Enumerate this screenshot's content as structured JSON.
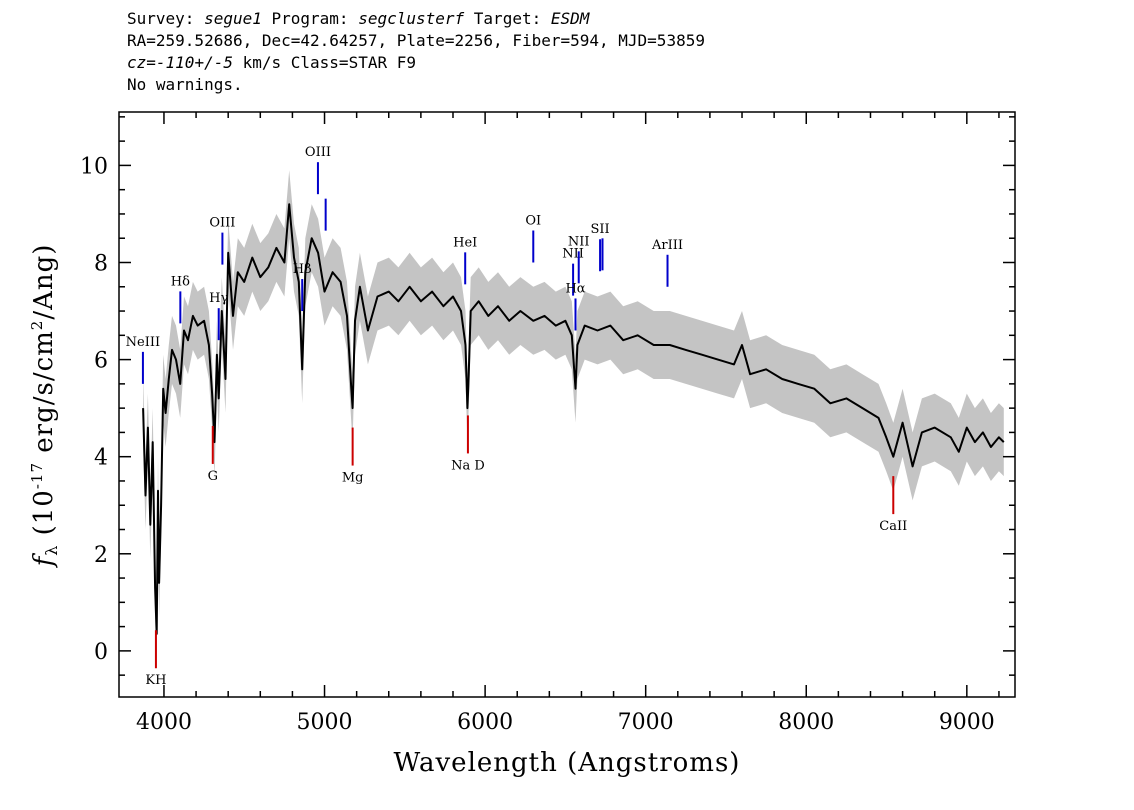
{
  "header": {
    "line1": {
      "survey_label": "Survey: ",
      "survey": "segue1",
      "program_label": " Program: ",
      "program": "segclusterf",
      "target_label": " Target: ",
      "target": "ESDM"
    },
    "line2": "RA=259.52686, Dec=42.64257, Plate=2256, Fiber=594, MJD=53859",
    "line3": {
      "cz_prefix": "cz=",
      "cz_value": "-110+/-5",
      "cz_suffix": " km/s Class=STAR F9"
    },
    "line4": "No warnings."
  },
  "chart_data": {
    "type": "line",
    "xlabel": "Wavelength (Angstroms)",
    "ylabel": "f_λ (10^-17 erg/s/cm^2/Ang)",
    "xlim": [
      3720,
      9300
    ],
    "ylim": [
      -0.95,
      11.1
    ],
    "x_ticks": [
      4000,
      5000,
      6000,
      7000,
      8000,
      9000
    ],
    "y_ticks": [
      0,
      2,
      4,
      6,
      8,
      10
    ],
    "colors": {
      "spectrum": "#000000",
      "error_band": "#c4c4c4",
      "emission": "#0000cc",
      "absorption": "#cc0000"
    },
    "series": [
      {
        "name": "spectrum",
        "points": [
          [
            3870,
            5.0
          ],
          [
            3885,
            3.2
          ],
          [
            3900,
            4.6
          ],
          [
            3915,
            2.6
          ],
          [
            3930,
            4.3
          ],
          [
            3945,
            1.3
          ],
          [
            3955,
            0.35
          ],
          [
            3963,
            3.3
          ],
          [
            3970,
            1.4
          ],
          [
            3982,
            3.0
          ],
          [
            3995,
            5.4
          ],
          [
            4010,
            4.9
          ],
          [
            4030,
            5.6
          ],
          [
            4050,
            6.2
          ],
          [
            4075,
            6.0
          ],
          [
            4101,
            5.5
          ],
          [
            4125,
            6.6
          ],
          [
            4150,
            6.4
          ],
          [
            4180,
            6.9
          ],
          [
            4210,
            6.7
          ],
          [
            4250,
            6.8
          ],
          [
            4280,
            6.3
          ],
          [
            4300,
            5.3
          ],
          [
            4315,
            4.3
          ],
          [
            4330,
            6.1
          ],
          [
            4341,
            5.2
          ],
          [
            4360,
            7.0
          ],
          [
            4383,
            5.6
          ],
          [
            4400,
            8.2
          ],
          [
            4430,
            6.9
          ],
          [
            4460,
            7.8
          ],
          [
            4500,
            7.6
          ],
          [
            4550,
            8.1
          ],
          [
            4600,
            7.7
          ],
          [
            4650,
            7.9
          ],
          [
            4700,
            8.3
          ],
          [
            4750,
            8.0
          ],
          [
            4780,
            9.2
          ],
          [
            4810,
            8.1
          ],
          [
            4840,
            7.6
          ],
          [
            4861,
            5.8
          ],
          [
            4880,
            7.8
          ],
          [
            4920,
            8.5
          ],
          [
            4960,
            8.2
          ],
          [
            5000,
            7.4
          ],
          [
            5050,
            7.8
          ],
          [
            5100,
            7.6
          ],
          [
            5140,
            6.9
          ],
          [
            5167,
            5.4
          ],
          [
            5175,
            5.0
          ],
          [
            5190,
            6.8
          ],
          [
            5220,
            7.5
          ],
          [
            5270,
            6.6
          ],
          [
            5330,
            7.3
          ],
          [
            5400,
            7.4
          ],
          [
            5460,
            7.2
          ],
          [
            5530,
            7.5
          ],
          [
            5600,
            7.2
          ],
          [
            5670,
            7.4
          ],
          [
            5740,
            7.1
          ],
          [
            5800,
            7.3
          ],
          [
            5850,
            7.0
          ],
          [
            5878,
            6.3
          ],
          [
            5890,
            5.0
          ],
          [
            5896,
            5.5
          ],
          [
            5910,
            7.0
          ],
          [
            5960,
            7.2
          ],
          [
            6020,
            6.9
          ],
          [
            6080,
            7.1
          ],
          [
            6150,
            6.8
          ],
          [
            6220,
            7.0
          ],
          [
            6300,
            6.8
          ],
          [
            6370,
            6.9
          ],
          [
            6440,
            6.7
          ],
          [
            6500,
            6.8
          ],
          [
            6540,
            6.5
          ],
          [
            6563,
            5.4
          ],
          [
            6575,
            6.3
          ],
          [
            6620,
            6.7
          ],
          [
            6700,
            6.6
          ],
          [
            6780,
            6.7
          ],
          [
            6860,
            6.4
          ],
          [
            6950,
            6.5
          ],
          [
            7050,
            6.3
          ],
          [
            7150,
            6.3
          ],
          [
            7250,
            6.2
          ],
          [
            7350,
            6.1
          ],
          [
            7450,
            6.0
          ],
          [
            7550,
            5.9
          ],
          [
            7600,
            6.3
          ],
          [
            7650,
            5.7
          ],
          [
            7750,
            5.8
          ],
          [
            7850,
            5.6
          ],
          [
            7950,
            5.5
          ],
          [
            8050,
            5.4
          ],
          [
            8150,
            5.1
          ],
          [
            8250,
            5.2
          ],
          [
            8350,
            5.0
          ],
          [
            8450,
            4.8
          ],
          [
            8498,
            4.4
          ],
          [
            8542,
            4.0
          ],
          [
            8600,
            4.7
          ],
          [
            8662,
            3.8
          ],
          [
            8720,
            4.5
          ],
          [
            8800,
            4.6
          ],
          [
            8900,
            4.4
          ],
          [
            8950,
            4.1
          ],
          [
            9000,
            4.6
          ],
          [
            9050,
            4.3
          ],
          [
            9100,
            4.5
          ],
          [
            9150,
            4.2
          ],
          [
            9200,
            4.4
          ],
          [
            9230,
            4.3
          ]
        ]
      }
    ],
    "emission_lines": [
      {
        "label": "NeIII",
        "wavelength": 3869
      },
      {
        "label": "Hδ",
        "wavelength": 4102
      },
      {
        "label": "Hγ",
        "wavelength": 4341
      },
      {
        "label": "OIII",
        "wavelength": 4364
      },
      {
        "label": "Hβ",
        "wavelength": 4861
      },
      {
        "label": "OIII",
        "wavelength": 4959
      },
      {
        "label": "",
        "wavelength": 5007
      },
      {
        "label": "HeI",
        "wavelength": 5876
      },
      {
        "label": "OI",
        "wavelength": 6300
      },
      {
        "label": "NII",
        "wavelength": 6548
      },
      {
        "label": "Hα",
        "wavelength": 6563
      },
      {
        "label": "NII",
        "wavelength": 6583
      },
      {
        "label": "SII",
        "wavelength": 6716
      },
      {
        "label": "",
        "wavelength": 6731
      },
      {
        "label": "ArIII",
        "wavelength": 7136
      }
    ],
    "absorption_lines": [
      {
        "label": "KH",
        "wavelength": 3950
      },
      {
        "label": "G",
        "wavelength": 4304
      },
      {
        "label": "Mg",
        "wavelength": 5175
      },
      {
        "label": "Na D",
        "wavelength": 5893
      },
      {
        "label": "CaII",
        "wavelength": 8542
      }
    ]
  }
}
